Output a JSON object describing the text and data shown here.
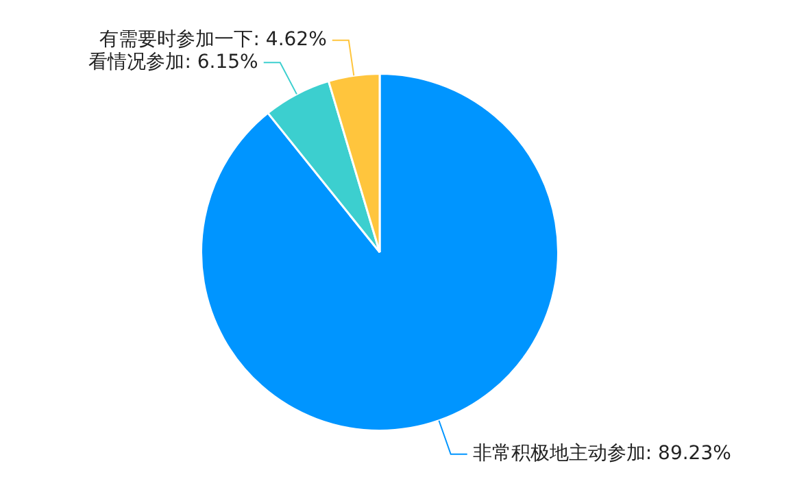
{
  "chart_data": {
    "type": "pie",
    "categories": [
      "非常积极地主动参加",
      "看情况参加",
      "有需要时参加一下"
    ],
    "values": [
      89.23,
      6.15,
      4.62
    ],
    "colors": [
      "#0095ff",
      "#3ccfcf",
      "#ffc53d"
    ],
    "value_labels": [
      "89.23%",
      "6.15%",
      "4.62%"
    ]
  }
}
